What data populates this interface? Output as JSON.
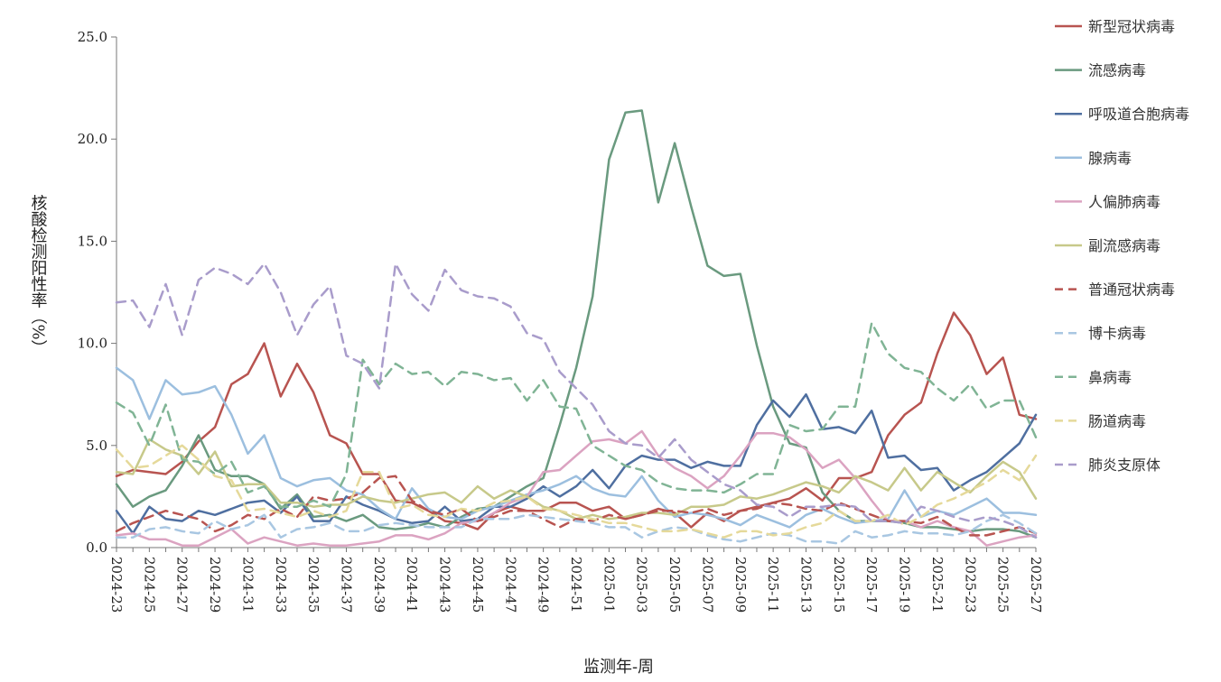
{
  "chart_data": {
    "type": "line",
    "title": "",
    "xlabel": "监测年-周",
    "ylabel": "核酸检测阳性率（%）",
    "ylim": [
      0,
      25
    ],
    "yticks": [
      "0.0",
      "5.0",
      "10.0",
      "15.0",
      "20.0",
      "25.0"
    ],
    "grid": false,
    "legend_position": "right",
    "x": [
      "2024-23",
      "2024-24",
      "2024-25",
      "2024-26",
      "2024-27",
      "2024-28",
      "2024-29",
      "2024-30",
      "2024-31",
      "2024-32",
      "2024-33",
      "2024-34",
      "2024-35",
      "2024-36",
      "2024-37",
      "2024-38",
      "2024-39",
      "2024-40",
      "2024-41",
      "2024-42",
      "2024-43",
      "2024-44",
      "2024-45",
      "2024-46",
      "2024-47",
      "2024-48",
      "2024-49",
      "2024-50",
      "2024-51",
      "2024-52",
      "2025-01",
      "2025-02",
      "2025-03",
      "2025-04",
      "2025-05",
      "2025-06",
      "2025-07",
      "2025-08",
      "2025-09",
      "2025-10",
      "2025-11",
      "2025-12",
      "2025-13",
      "2025-14",
      "2025-15",
      "2025-16",
      "2025-17",
      "2025-18",
      "2025-19",
      "2025-20",
      "2025-21",
      "2025-22",
      "2025-23",
      "2025-24",
      "2025-25",
      "2025-26",
      "2025-27"
    ],
    "x_tick_labels": [
      "2024-23",
      "2024-25",
      "2024-27",
      "2024-29",
      "2024-31",
      "2024-33",
      "2024-35",
      "2024-37",
      "2024-39",
      "2024-41",
      "2024-43",
      "2024-45",
      "2024-47",
      "2024-49",
      "2024-51",
      "2025-01",
      "2025-03",
      "2025-05",
      "2025-07",
      "2025-09",
      "2025-11",
      "2025-13",
      "2025-15",
      "2025-17",
      "2025-19",
      "2025-21",
      "2025-23",
      "2025-25",
      "2025-27"
    ],
    "series": [
      {
        "name": "新型冠状病毒",
        "color": "#b85450",
        "dash": false,
        "values": [
          3.5,
          3.8,
          3.7,
          3.6,
          4.2,
          5.2,
          5.9,
          8.0,
          8.5,
          10.0,
          7.4,
          9.0,
          7.6,
          5.5,
          5.1,
          3.6,
          3.6,
          2.3,
          2.2,
          1.8,
          1.3,
          1.2,
          0.9,
          1.7,
          2.0,
          1.8,
          1.8,
          2.2,
          2.2,
          1.8,
          2.0,
          1.4,
          1.6,
          1.9,
          1.7,
          1.0,
          1.7,
          1.3,
          1.8,
          2.0,
          2.2,
          2.4,
          2.9,
          2.3,
          3.4,
          3.4,
          3.7,
          5.5,
          6.5,
          7.1,
          9.5,
          11.5,
          10.4,
          8.5,
          9.3,
          6.5,
          6.3
        ]
      },
      {
        "name": "流感病毒",
        "color": "#6a9a7f",
        "dash": false,
        "values": [
          3.1,
          2.0,
          2.5,
          2.8,
          4.0,
          5.5,
          3.8,
          3.5,
          3.5,
          3.1,
          1.9,
          2.6,
          1.5,
          1.6,
          1.3,
          1.6,
          1.0,
          0.9,
          1.0,
          1.2,
          1.0,
          1.5,
          1.9,
          2.0,
          2.5,
          3.0,
          3.4,
          6.0,
          8.8,
          12.3,
          19.0,
          21.3,
          21.4,
          16.9,
          19.8,
          16.7,
          13.8,
          13.3,
          13.4,
          9.9,
          6.9,
          5.1,
          4.9,
          2.7,
          1.8,
          1.3,
          1.3,
          1.3,
          1.2,
          1.0,
          1.0,
          0.9,
          0.8,
          0.9,
          0.9,
          0.8,
          0.5
        ]
      },
      {
        "name": "呼吸道合胞病毒",
        "color": "#4f6fa0",
        "dash": false,
        "values": [
          1.8,
          0.7,
          2.0,
          1.4,
          1.3,
          1.8,
          1.6,
          1.9,
          2.2,
          2.3,
          1.7,
          2.5,
          1.3,
          1.3,
          2.5,
          2.1,
          1.8,
          1.4,
          1.2,
          1.3,
          2.0,
          1.3,
          1.4,
          2.0,
          2.0,
          2.4,
          3.0,
          2.5,
          3.0,
          3.8,
          2.9,
          4.0,
          4.5,
          4.3,
          4.3,
          3.9,
          4.2,
          4.0,
          4.0,
          6.0,
          7.2,
          6.4,
          7.5,
          5.8,
          5.9,
          5.6,
          6.7,
          4.4,
          4.5,
          3.8,
          3.9,
          2.8,
          3.3,
          3.7,
          4.4,
          5.1,
          6.5
        ]
      },
      {
        "name": "腺病毒",
        "color": "#9cbfdf",
        "dash": false,
        "values": [
          8.8,
          8.2,
          6.3,
          8.2,
          7.5,
          7.6,
          7.9,
          6.5,
          4.6,
          5.5,
          3.4,
          3.0,
          3.3,
          3.4,
          2.8,
          2.6,
          1.9,
          1.4,
          2.9,
          1.9,
          1.5,
          1.4,
          1.8,
          2.0,
          2.3,
          2.6,
          2.8,
          3.1,
          3.5,
          2.9,
          2.6,
          2.5,
          3.5,
          2.3,
          1.5,
          1.7,
          1.6,
          1.4,
          1.1,
          1.6,
          1.3,
          1.0,
          1.6,
          1.9,
          1.5,
          1.2,
          1.3,
          1.4,
          2.8,
          1.5,
          1.8,
          1.6,
          2.0,
          2.4,
          1.7,
          1.7,
          1.6
        ]
      },
      {
        "name": "人偏肺病毒",
        "color": "#dba3c1",
        "dash": false,
        "values": [
          0.6,
          0.7,
          0.4,
          0.4,
          0.1,
          0.1,
          0.5,
          0.9,
          0.2,
          0.5,
          0.3,
          0.1,
          0.2,
          0.1,
          0.1,
          0.2,
          0.3,
          0.6,
          0.6,
          0.4,
          0.7,
          1.2,
          1.3,
          1.7,
          2.2,
          2.5,
          3.7,
          3.8,
          4.5,
          5.2,
          5.3,
          5.1,
          5.7,
          4.5,
          3.9,
          3.5,
          2.9,
          3.5,
          4.5,
          5.6,
          5.6,
          5.4,
          4.8,
          3.9,
          4.3,
          3.4,
          2.3,
          1.3,
          1.3,
          1.0,
          1.3,
          1.0,
          0.8,
          0.1,
          0.3,
          0.5,
          0.6
        ]
      },
      {
        "name": "副流感病毒",
        "color": "#c7c98a",
        "dash": false,
        "values": [
          3.7,
          3.6,
          5.3,
          4.8,
          4.5,
          3.6,
          4.7,
          3.0,
          3.1,
          3.1,
          2.2,
          2.2,
          2.0,
          2.1,
          2.1,
          2.5,
          2.3,
          2.2,
          2.4,
          2.6,
          2.7,
          2.2,
          3.0,
          2.4,
          2.8,
          2.5,
          2.0,
          1.8,
          1.4,
          1.6,
          1.4,
          1.5,
          1.7,
          1.7,
          1.6,
          2.0,
          2.0,
          2.1,
          2.5,
          2.4,
          2.6,
          2.9,
          3.2,
          3.0,
          2.7,
          3.5,
          3.2,
          2.8,
          3.9,
          2.8,
          3.7,
          3.2,
          2.7,
          3.5,
          4.2,
          3.7,
          2.4
        ]
      },
      {
        "name": "普通冠状病毒",
        "color": "#b85450",
        "dash": true,
        "values": [
          0.8,
          1.2,
          1.5,
          1.8,
          1.6,
          1.4,
          0.8,
          1.1,
          1.6,
          1.4,
          1.9,
          1.5,
          2.5,
          2.3,
          2.4,
          2.7,
          3.4,
          3.5,
          2.3,
          1.8,
          1.6,
          1.9,
          1.3,
          1.5,
          1.8,
          1.8,
          1.4,
          1.0,
          1.4,
          1.3,
          1.6,
          1.4,
          1.6,
          1.8,
          1.8,
          1.7,
          1.9,
          1.6,
          1.8,
          1.9,
          2.2,
          2.1,
          1.9,
          1.8,
          2.2,
          1.9,
          1.6,
          1.3,
          1.3,
          1.2,
          1.5,
          1.0,
          0.6,
          0.6,
          0.8,
          1.0,
          0.7
        ]
      },
      {
        "name": "博卡病毒",
        "color": "#a9c7e2",
        "dash": true,
        "values": [
          0.5,
          0.5,
          0.9,
          1.0,
          0.8,
          0.7,
          1.3,
          0.9,
          1.1,
          1.6,
          0.5,
          0.9,
          1.0,
          1.2,
          0.8,
          0.8,
          1.1,
          1.2,
          1.1,
          1.0,
          1.0,
          1.0,
          1.4,
          1.4,
          1.4,
          1.6,
          1.5,
          1.4,
          1.3,
          1.2,
          1.0,
          1.0,
          0.5,
          0.8,
          1.0,
          0.9,
          0.6,
          0.4,
          0.3,
          0.5,
          0.7,
          0.6,
          0.3,
          0.3,
          0.2,
          0.8,
          0.5,
          0.6,
          0.8,
          0.7,
          0.7,
          0.6,
          0.8,
          1.3,
          1.6,
          1.2,
          0.7
        ]
      },
      {
        "name": "鼻病毒",
        "color": "#80b495",
        "dash": true,
        "values": [
          7.1,
          6.6,
          5.0,
          7.0,
          4.3,
          4.2,
          3.6,
          4.2,
          2.7,
          3.0,
          2.0,
          2.0,
          2.3,
          2.0,
          3.6,
          9.2,
          8.0,
          9.0,
          8.5,
          8.6,
          7.9,
          8.6,
          8.5,
          8.2,
          8.3,
          7.2,
          8.2,
          6.9,
          6.8,
          5.0,
          4.5,
          4.0,
          3.8,
          3.2,
          2.9,
          2.8,
          2.8,
          2.7,
          3.1,
          3.6,
          3.6,
          6.0,
          5.7,
          5.8,
          6.9,
          6.9,
          11.0,
          9.5,
          8.8,
          8.6,
          7.8,
          7.2,
          8.0,
          6.8,
          7.2,
          7.2,
          5.4
        ]
      },
      {
        "name": "肠道病毒",
        "color": "#e5d99a",
        "dash": true,
        "values": [
          4.8,
          3.9,
          4.0,
          4.5,
          5.0,
          4.3,
          3.5,
          3.3,
          1.8,
          1.9,
          1.7,
          1.5,
          1.8,
          1.5,
          1.8,
          3.7,
          3.7,
          1.9,
          2.1,
          1.6,
          1.5,
          1.9,
          1.8,
          2.2,
          2.3,
          2.5,
          1.9,
          1.8,
          1.6,
          1.4,
          1.2,
          1.2,
          1.0,
          0.8,
          0.8,
          0.9,
          0.7,
          0.5,
          0.8,
          0.8,
          0.6,
          0.7,
          1.0,
          1.2,
          1.8,
          1.3,
          1.3,
          1.6,
          1.1,
          1.5,
          2.1,
          2.4,
          2.8,
          3.2,
          3.8,
          3.3,
          4.5
        ]
      },
      {
        "name": "肺炎支原体",
        "color": "#a99ccb",
        "dash": true,
        "values": [
          12.0,
          12.1,
          10.8,
          12.9,
          10.4,
          13.1,
          13.7,
          13.4,
          12.9,
          13.9,
          12.5,
          10.4,
          11.9,
          12.8,
          9.4,
          9.0,
          7.8,
          13.9,
          12.4,
          11.6,
          13.6,
          12.6,
          12.3,
          12.2,
          11.8,
          10.5,
          10.2,
          8.6,
          7.8,
          7.0,
          5.7,
          5.1,
          5.0,
          4.4,
          5.3,
          4.3,
          3.7,
          3.1,
          2.8,
          2.1,
          2.0,
          1.5,
          2.0,
          2.0,
          2.1,
          2.0,
          1.3,
          1.3,
          1.2,
          2.0,
          1.8,
          1.5,
          1.3,
          1.5,
          1.3,
          1.0,
          0.5
        ]
      }
    ]
  }
}
